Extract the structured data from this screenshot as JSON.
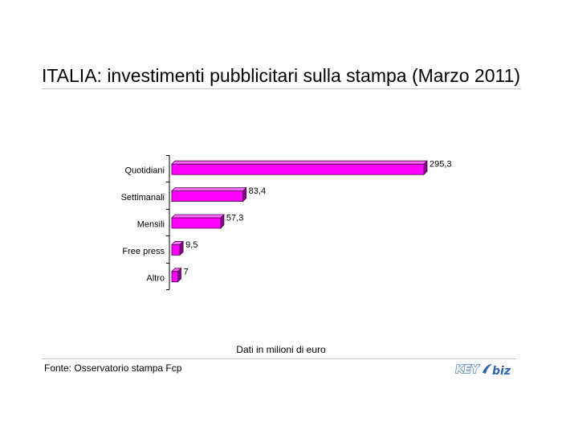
{
  "title": "ITALIA: investimenti pubblicitari sulla stampa (Marzo 2011)",
  "note": "Dati in milioni di euro",
  "source": "Fonte: Osservatorio stampa Fcp",
  "logo": {
    "key_text": "KEY",
    "biz_text": "biz"
  },
  "colors": {
    "bar_front": "#ff00ff",
    "bar_top": "#ff6bff",
    "bar_side": "#8a008a",
    "bar_outline": "#4a004a"
  },
  "chart_data": {
    "type": "bar",
    "orientation": "horizontal",
    "title": "ITALIA: investimenti pubblicitari sulla stampa (Marzo 2011)",
    "categories": [
      "Quotidiani",
      "Settimanali",
      "Mensili",
      "Free press",
      "Altro"
    ],
    "values": [
      295.3,
      83.4,
      57.3,
      9.5,
      7
    ],
    "value_labels": [
      "295,3",
      "83,4",
      "57,3",
      "9,5",
      "7"
    ],
    "unit": "milioni di euro",
    "xlim": [
      0,
      295.3
    ],
    "grid": false,
    "legend": "none"
  }
}
